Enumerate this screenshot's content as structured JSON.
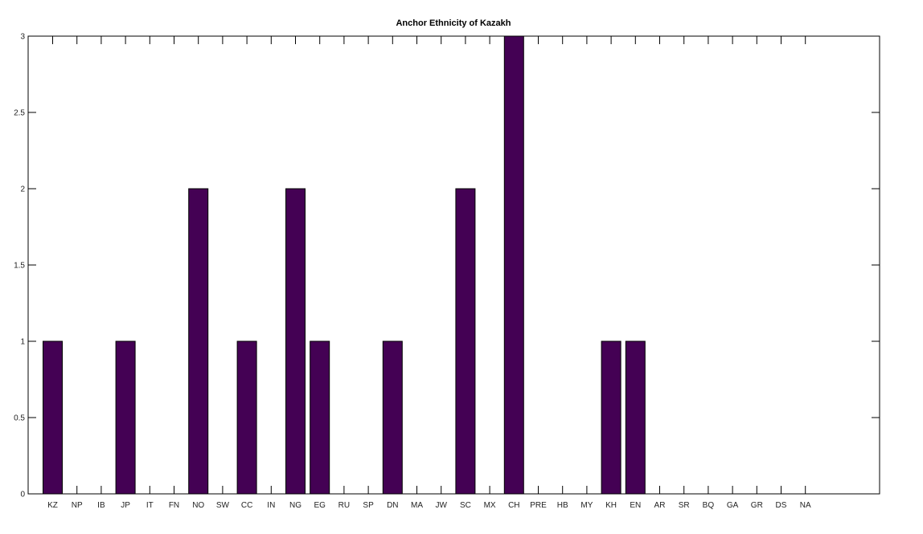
{
  "chart_data": {
    "type": "bar",
    "title": "Anchor Ethnicity of Kazakh",
    "xlabel": "",
    "ylabel": "",
    "categories": [
      "KZ",
      "NP",
      "IB",
      "JP",
      "IT",
      "FN",
      "NO",
      "SW",
      "CC",
      "IN",
      "NG",
      "EG",
      "RU",
      "SP",
      "DN",
      "MA",
      "JW",
      "SC",
      "MX",
      "CH",
      "PRE",
      "HB",
      "MY",
      "KH",
      "EN",
      "AR",
      "SR",
      "BQ",
      "GA",
      "GR",
      "DS",
      "NA"
    ],
    "values": [
      1,
      0,
      0,
      1,
      0,
      0,
      2,
      0,
      1,
      0,
      2,
      1,
      0,
      0,
      1,
      0,
      0,
      2,
      0,
      3,
      0,
      0,
      0,
      1,
      1,
      0,
      0,
      0,
      0,
      0,
      0,
      0
    ],
    "ylim": [
      0,
      3
    ],
    "yticks": [
      "0",
      "0.5",
      "1",
      "1.5",
      "2",
      "2.5",
      "3"
    ],
    "grid": false,
    "legend": "none",
    "bar_color": "#440154"
  }
}
